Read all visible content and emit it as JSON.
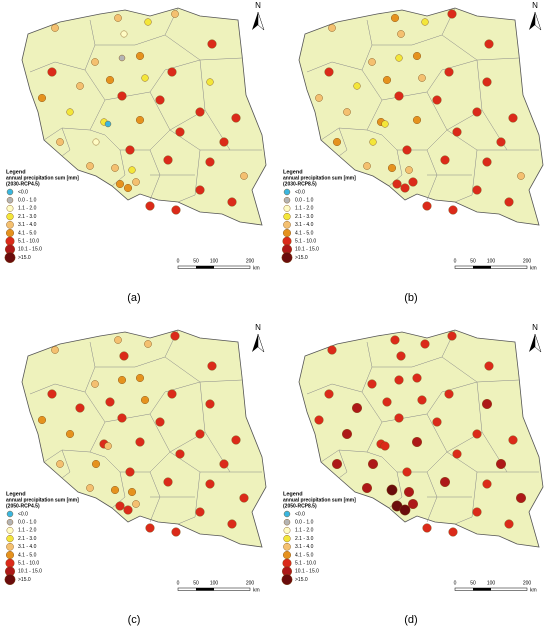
{
  "north": "N",
  "legend": {
    "title": "Legend",
    "subtitle": "annual precipitation sum [mm]",
    "classes": [
      {
        "label": "<0.0",
        "color": "#3bb6e0"
      },
      {
        "label": "0.0 - 1.0",
        "color": "#b4b4b4"
      },
      {
        "label": "1.1 - 2.0",
        "color": "#fffcc4"
      },
      {
        "label": "2.1 - 3.0",
        "color": "#f3e63a"
      },
      {
        "label": "3.1 - 4.0",
        "color": "#f4c070"
      },
      {
        "label": "4.1 - 5.0",
        "color": "#e5921e"
      },
      {
        "label": "5.1 - 10.0",
        "color": "#db2a1a"
      },
      {
        "label": "10.1 - 15.0",
        "color": "#ad1818"
      },
      {
        "label": ">15.0",
        "color": "#6a0c0c"
      }
    ]
  },
  "scale": [
    "0",
    "50",
    "100",
    "200",
    "km"
  ],
  "panels": [
    {
      "caption": "(a)",
      "scenario": "(2030-RCP4.5)",
      "points": [
        4,
        4,
        2,
        3,
        4,
        6,
        6,
        4,
        1,
        5,
        6,
        3,
        5,
        4,
        5,
        3,
        6,
        6,
        6,
        6,
        3,
        3,
        5,
        6,
        6,
        4,
        2,
        6,
        6,
        6,
        4,
        4,
        4,
        5,
        5,
        4,
        6,
        6,
        6,
        6,
        0,
        3
      ]
    },
    {
      "caption": "(b)",
      "scenario": "(2030-RCP8.5)",
      "points": [
        4,
        5,
        4,
        3,
        6,
        6,
        6,
        4,
        3,
        5,
        6,
        6,
        4,
        3,
        5,
        4,
        6,
        6,
        6,
        6,
        4,
        5,
        5,
        6,
        6,
        5,
        3,
        6,
        6,
        6,
        4,
        4,
        5,
        6,
        6,
        6,
        6,
        6,
        6,
        6,
        3,
        4
      ]
    },
    {
      "caption": "(c)",
      "scenario": "(2050-RCP4.5)",
      "points": [
        4,
        4,
        6,
        4,
        6,
        6,
        6,
        4,
        5,
        5,
        6,
        6,
        5,
        6,
        6,
        5,
        6,
        6,
        6,
        6,
        5,
        6,
        6,
        6,
        6,
        4,
        5,
        6,
        6,
        6,
        6,
        4,
        5,
        6,
        6,
        4,
        6,
        6,
        6,
        6,
        4,
        5
      ]
    },
    {
      "caption": "(d)",
      "scenario": "(2050-RCP8.5)",
      "points": [
        6,
        6,
        6,
        6,
        6,
        6,
        6,
        6,
        6,
        6,
        6,
        7,
        6,
        7,
        6,
        6,
        6,
        6,
        6,
        6,
        7,
        6,
        7,
        6,
        7,
        7,
        7,
        6,
        7,
        6,
        7,
        7,
        8,
        8,
        8,
        7,
        6,
        6,
        6,
        6,
        6,
        7
      ]
    }
  ]
}
